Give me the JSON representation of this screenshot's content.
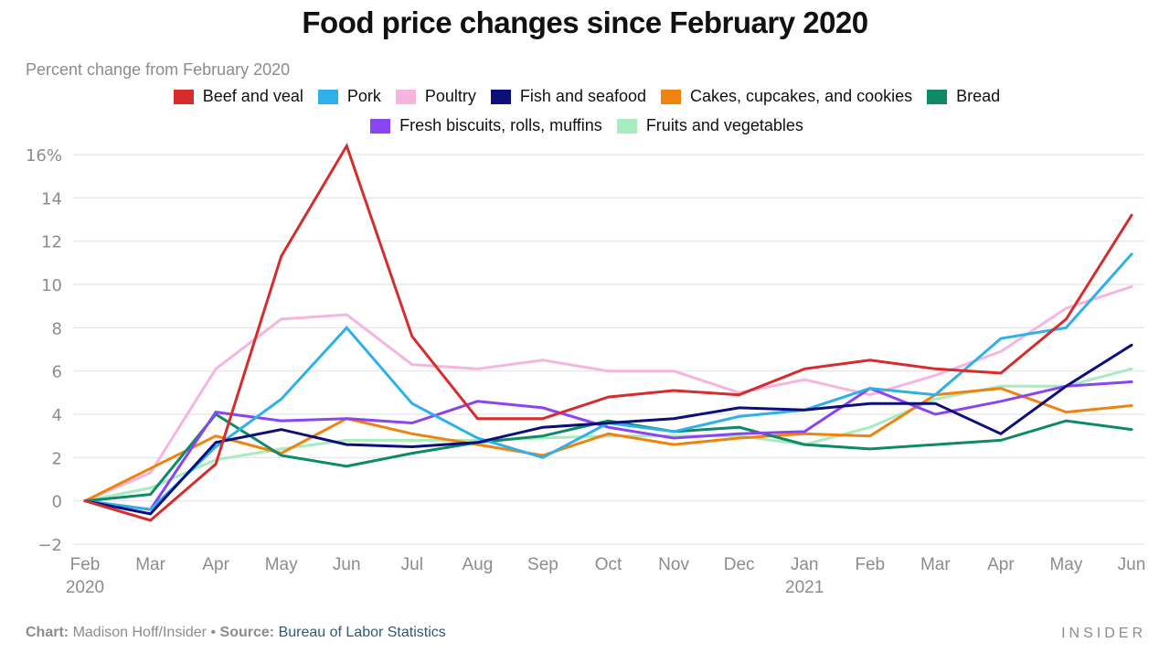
{
  "chart_data": {
    "type": "line",
    "title": "Food price changes since February 2020",
    "subtitle": "Percent change from February 2020",
    "xlabel": "",
    "ylabel": "Percent change from February 2020",
    "x": [
      "Feb 2020",
      "Mar",
      "Apr",
      "May",
      "Jun",
      "Jul",
      "Aug",
      "Sep",
      "Oct",
      "Nov",
      "Dec",
      "Jan 2021",
      "Feb",
      "Mar",
      "Apr",
      "May",
      "Jun"
    ],
    "x_tick_labels": [
      {
        "line1": "Feb",
        "line2": "2020"
      },
      {
        "line1": "Mar",
        "line2": ""
      },
      {
        "line1": "Apr",
        "line2": ""
      },
      {
        "line1": "May",
        "line2": ""
      },
      {
        "line1": "Jun",
        "line2": ""
      },
      {
        "line1": "Jul",
        "line2": ""
      },
      {
        "line1": "Aug",
        "line2": ""
      },
      {
        "line1": "Sep",
        "line2": ""
      },
      {
        "line1": "Oct",
        "line2": ""
      },
      {
        "line1": "Nov",
        "line2": ""
      },
      {
        "line1": "Dec",
        "line2": ""
      },
      {
        "line1": "Jan",
        "line2": "2021"
      },
      {
        "line1": "Feb",
        "line2": ""
      },
      {
        "line1": "Mar",
        "line2": ""
      },
      {
        "line1": "Apr",
        "line2": ""
      },
      {
        "line1": "May",
        "line2": ""
      },
      {
        "line1": "Jun",
        "line2": ""
      }
    ],
    "ylim": [
      -2,
      16
    ],
    "y_ticks": [
      -2,
      0,
      2,
      4,
      6,
      8,
      10,
      12,
      14,
      16
    ],
    "y_tick_labels": [
      "−2",
      "0",
      "2",
      "4",
      "6",
      "8",
      "10",
      "12",
      "14",
      "16%"
    ],
    "grid": true,
    "legend_position": "top-center",
    "series": [
      {
        "name": "Beef and veal",
        "color": "#d62c2c",
        "values": [
          0,
          -0.9,
          1.7,
          11.3,
          16.4,
          7.6,
          3.8,
          3.8,
          4.8,
          5.1,
          4.9,
          6.1,
          6.5,
          6.1,
          5.9,
          8.4,
          13.2
        ]
      },
      {
        "name": "Pork",
        "color": "#2eb1e8",
        "values": [
          0,
          -0.4,
          2.5,
          4.7,
          8.0,
          4.5,
          2.9,
          2.0,
          3.6,
          3.2,
          3.9,
          4.2,
          5.2,
          4.9,
          7.5,
          8.0,
          11.4
        ]
      },
      {
        "name": "Poultry",
        "color": "#f5b5df",
        "values": [
          0,
          1.3,
          6.1,
          8.4,
          8.6,
          6.3,
          6.1,
          6.5,
          6.0,
          6.0,
          5.0,
          5.6,
          4.9,
          5.8,
          6.9,
          8.9,
          9.9
        ]
      },
      {
        "name": "Fish and seafood",
        "color": "#0c0f7a",
        "values": [
          0,
          -0.6,
          2.7,
          3.3,
          2.6,
          2.5,
          2.7,
          3.4,
          3.6,
          3.8,
          4.3,
          4.2,
          4.5,
          4.5,
          3.1,
          5.3,
          7.2
        ]
      },
      {
        "name": "Cakes, cupcakes, and cookies",
        "color": "#f0820f",
        "values": [
          0,
          1.5,
          3.0,
          2.2,
          3.8,
          3.1,
          2.6,
          2.1,
          3.1,
          2.6,
          2.9,
          3.1,
          3.0,
          4.9,
          5.2,
          4.1,
          4.4
        ]
      },
      {
        "name": "Bread",
        "color": "#0e8a67",
        "values": [
          0,
          0.3,
          4.0,
          2.1,
          1.6,
          2.2,
          2.7,
          3.0,
          3.7,
          3.2,
          3.4,
          2.6,
          2.4,
          2.6,
          2.8,
          3.7,
          3.3
        ]
      },
      {
        "name": "Fresh biscuits, rolls, muffins",
        "color": "#8a45f0",
        "values": [
          0,
          -0.4,
          4.1,
          3.7,
          3.8,
          3.6,
          4.6,
          4.3,
          3.4,
          2.9,
          3.1,
          3.2,
          5.2,
          4.0,
          4.6,
          5.3,
          5.5
        ]
      },
      {
        "name": "Fruits and vegetables",
        "color": "#a6ecbe",
        "values": [
          0,
          0.6,
          1.9,
          2.4,
          2.8,
          2.8,
          2.8,
          2.9,
          3.0,
          3.0,
          3.0,
          2.6,
          3.4,
          4.7,
          5.3,
          5.3,
          6.1
        ]
      }
    ]
  },
  "legend": {
    "row1": [
      0,
      1,
      2,
      3,
      4,
      5
    ],
    "row2": [
      6,
      7
    ]
  },
  "footer": {
    "chart_label": "Chart:",
    "chart_credit": "Madison Hoff/Insider",
    "separator": "•",
    "source_label": "Source:",
    "source_name": "Bureau of Labor Statistics"
  },
  "brand": "INSIDER",
  "colors": {
    "gridline": "#e3e3e3",
    "axis_text": "#8c8c8c",
    "title_text": "#111111",
    "source_link": "#2c5a78"
  }
}
